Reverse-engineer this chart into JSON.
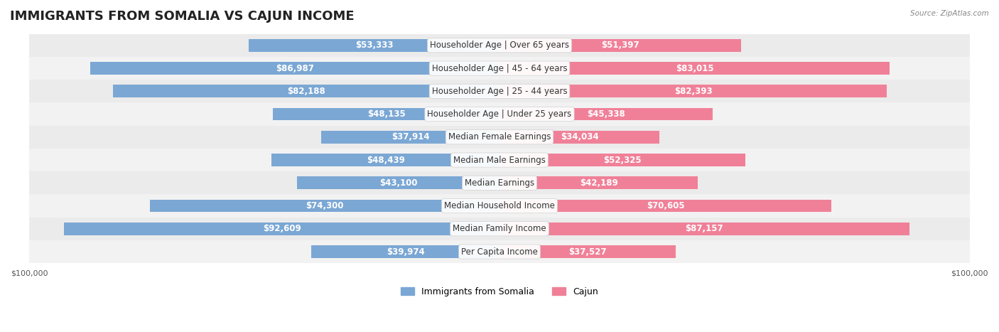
{
  "title": "IMMIGRANTS FROM SOMALIA VS CAJUN INCOME",
  "source": "Source: ZipAtlas.com",
  "categories": [
    "Per Capita Income",
    "Median Family Income",
    "Median Household Income",
    "Median Earnings",
    "Median Male Earnings",
    "Median Female Earnings",
    "Householder Age | Under 25 years",
    "Householder Age | 25 - 44 years",
    "Householder Age | 45 - 64 years",
    "Householder Age | Over 65 years"
  ],
  "somalia_values": [
    39974,
    92609,
    74300,
    43100,
    48439,
    37914,
    48135,
    82188,
    86987,
    53333
  ],
  "cajun_values": [
    37527,
    87157,
    70605,
    42189,
    52325,
    34034,
    45338,
    82393,
    83015,
    51397
  ],
  "somalia_color": "#7ba7d4",
  "cajun_color": "#f08098",
  "somalia_color_dark": "#5b8bbf",
  "cajun_color_dark": "#e05070",
  "label_color_inside": "#ffffff",
  "label_color_outside": "#555555",
  "max_value": 100000,
  "background_color": "#ffffff",
  "row_bg_color": "#f0f0f0",
  "row_alt_bg_color": "#e8e8e8",
  "legend_somalia": "Immigrants from Somalia",
  "legend_cajun": "Cajun",
  "title_fontsize": 13,
  "label_fontsize": 8.5,
  "category_fontsize": 8.5,
  "axis_fontsize": 8
}
